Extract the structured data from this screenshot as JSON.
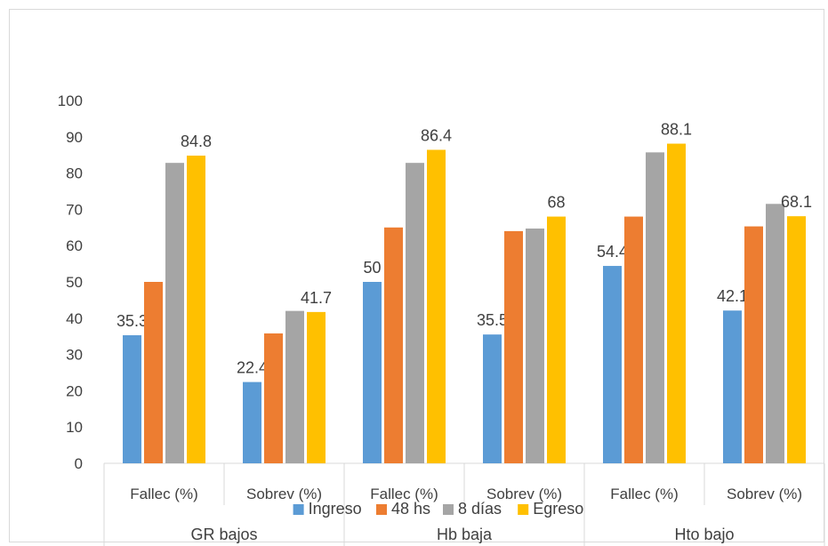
{
  "chart_data": {
    "type": "bar",
    "title": "",
    "xlabel": "",
    "ylabel": "",
    "ylim": [
      0,
      100
    ],
    "y_ticks": [
      "0",
      "10",
      "20",
      "30",
      "40",
      "50",
      "60",
      "70",
      "80",
      "90",
      "100"
    ],
    "groups": [
      "GR bajos",
      "Hb baja",
      "Hto bajo"
    ],
    "categories": [
      "Fallec (%)",
      "Sobrev (%)",
      "Fallec (%)",
      "Sobrev (%)",
      "Fallec (%)",
      "Sobrev (%)"
    ],
    "group_of_category": [
      0,
      0,
      1,
      1,
      2,
      2
    ],
    "series": [
      {
        "name": "Ingreso",
        "color": "#5b9bd5",
        "values": [
          35.3,
          22.4,
          50,
          35.5,
          54.4,
          42.1
        ],
        "labels": [
          "35.3",
          "22.4",
          "50",
          "35.5",
          "54.4",
          "42.1"
        ]
      },
      {
        "name": "48 hs",
        "color": "#ed7d31",
        "values": [
          50,
          35.8,
          65,
          64,
          68,
          65.3
        ],
        "labels": [
          "",
          "",
          "",
          "",
          "",
          ""
        ]
      },
      {
        "name": "8 días",
        "color": "#a5a5a5",
        "values": [
          82.8,
          42,
          82.8,
          64.7,
          85.7,
          71.5
        ],
        "labels": [
          "",
          "",
          "",
          "",
          "",
          ""
        ]
      },
      {
        "name": "Egreso",
        "color": "#ffc000",
        "values": [
          84.8,
          41.7,
          86.4,
          68,
          88.1,
          68.1
        ],
        "labels": [
          "84.8",
          "41.7",
          "86.4",
          "68",
          "88.1",
          "68.1"
        ]
      }
    ],
    "legend_position": "bottom",
    "grid": false
  }
}
